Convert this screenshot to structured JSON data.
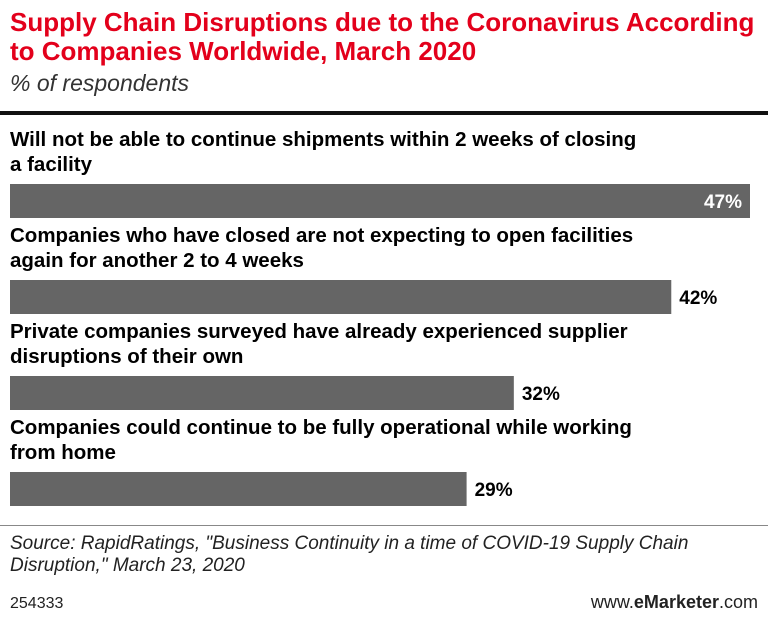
{
  "header": {
    "title": "Supply Chain Disruptions due to the Coronavirus According to Companies Worldwide, March 2020",
    "subtitle": "% of respondents"
  },
  "chart_data": {
    "type": "bar",
    "orientation": "horizontal",
    "title": "Supply Chain Disruptions due to the Coronavirus According to Companies Worldwide, March 2020",
    "subtitle": "% of respondents",
    "categories": [
      [
        "Will not be able to continue shipments within 2 weeks of closing",
        "a facility"
      ],
      [
        "Companies who have closed are not expecting to open facilities",
        "again for another 2 to 4 weeks"
      ],
      [
        "Private companies surveyed have already experienced supplier",
        "disruptions of their own"
      ],
      [
        "Companies could continue to be fully operational while working",
        "from home"
      ]
    ],
    "values": [
      47,
      42,
      32,
      29
    ],
    "value_labels": [
      "47%",
      "42%",
      "32%",
      "29%"
    ],
    "xlim": [
      0,
      47
    ],
    "grid": false,
    "bar_color": "#656565"
  },
  "footer": {
    "source": "Source: RapidRatings, \"Business Continuity in a time of COVID-19 Supply Chain Disruption,\" March 23, 2020",
    "chart_id": "254333",
    "brand_prefix": "www.",
    "brand_name": "eMarketer",
    "brand_suffix": ".com"
  }
}
